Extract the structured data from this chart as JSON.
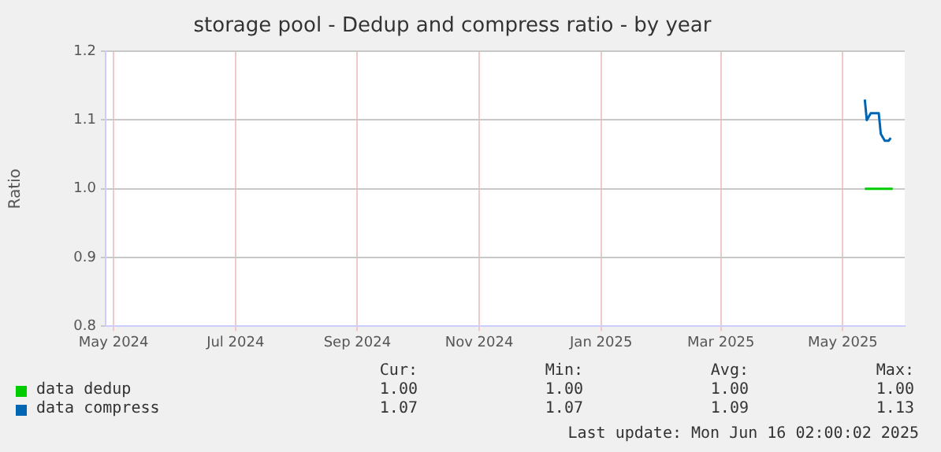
{
  "chart_data": {
    "type": "line",
    "title": "storage pool - Dedup and compress ratio - by year",
    "ylabel": "Ratio",
    "xlim": [
      "2024-05-12",
      "2025-06-16"
    ],
    "xticks": [
      {
        "value": "2024-05-16",
        "label": "May 2024"
      },
      {
        "value": "2024-07-16",
        "label": "Jul 2024"
      },
      {
        "value": "2024-09-15",
        "label": "Sep 2024"
      },
      {
        "value": "2024-11-15",
        "label": "Nov 2024"
      },
      {
        "value": "2025-01-15",
        "label": "Jan 2025"
      },
      {
        "value": "2025-03-16",
        "label": "Mar 2025"
      },
      {
        "value": "2025-05-16",
        "label": "May 2025"
      }
    ],
    "ylim": [
      0.8,
      1.2
    ],
    "yticks": [
      0.8,
      0.9,
      {
        "value": 1,
        "label": "1.0"
      },
      1.1,
      1.2
    ],
    "series": [
      {
        "name": "data dedup",
        "color": "#00cc00",
        "x": [
          "2025-05-27",
          "2025-06-10"
        ],
        "values": [
          1.0,
          1.0
        ]
      },
      {
        "name": "data compress",
        "color": "#0066b3",
        "x": [
          "2025-05-27",
          "2025-05-28",
          "2025-05-30",
          "2025-06-03",
          "2025-06-04",
          "2025-06-06",
          "2025-06-08",
          "2025-06-09"
        ],
        "values": [
          1.13,
          1.1,
          1.11,
          1.11,
          1.08,
          1.07,
          1.07,
          1.074
        ]
      }
    ],
    "annotations": [
      "Cur:",
      "Min:",
      "Avg:",
      "Max:",
      "1.00",
      "1.00",
      "1.00",
      "1.00",
      "1.07",
      "1.07",
      "1.09",
      "1.13",
      "Last update: Mon Jun 16 02:00:02 2025"
    ],
    "grid": true,
    "legend": "bottom",
    "marker": "none",
    "line_style": "solid"
  }
}
